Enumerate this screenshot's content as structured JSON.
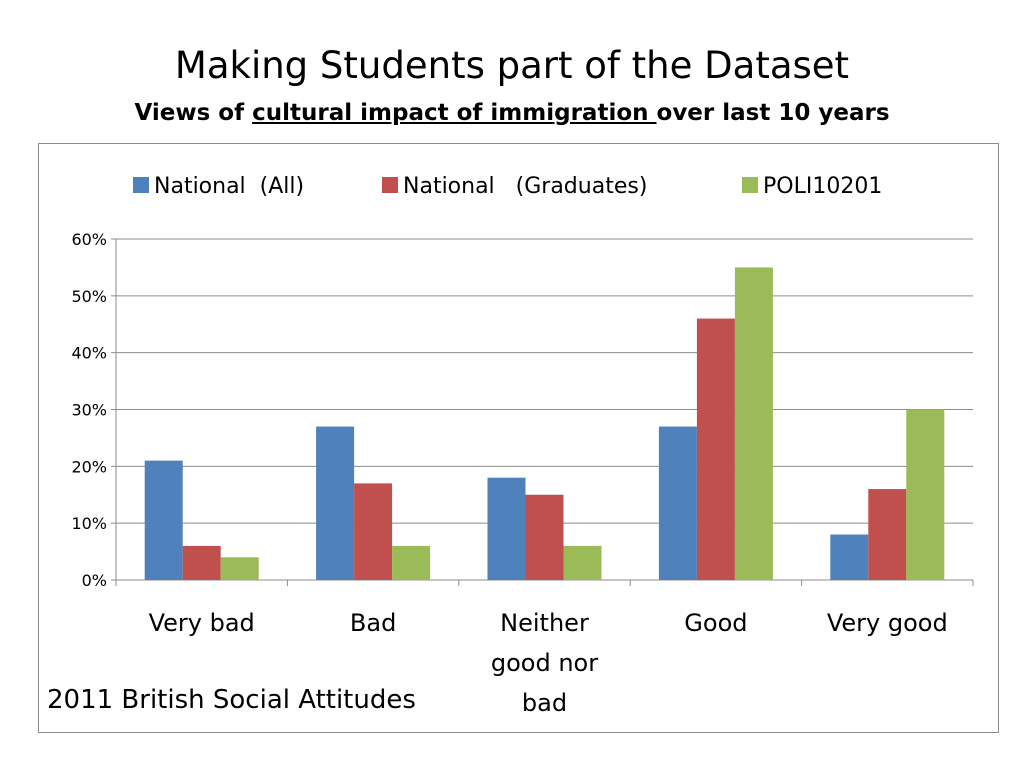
{
  "title": "Making Students part of the Dataset",
  "subtitle": {
    "prefix": "Views of ",
    "underlined": "cultural impact of immigration ",
    "suffix": "over last 10 years"
  },
  "source_note": "2011 British Social Attitudes",
  "chart_data": {
    "type": "bar",
    "categories": [
      "Very bad",
      "Bad",
      "Neither good nor bad",
      "Good",
      "Very good"
    ],
    "category_label_lines": [
      [
        "Very bad"
      ],
      [
        "Bad"
      ],
      [
        "Neither",
        "good nor",
        "bad"
      ],
      [
        "Good"
      ],
      [
        "Very good"
      ]
    ],
    "series": [
      {
        "name": "National  (All)",
        "color": "#4f81bd",
        "values": [
          21,
          27,
          18,
          27,
          8
        ]
      },
      {
        "name": "National   (Graduates)",
        "color": "#c0504d",
        "values": [
          6,
          17,
          15,
          46,
          16
        ]
      },
      {
        "name": "POLI10201",
        "color": "#9bbb59",
        "values": [
          4,
          6,
          6,
          55,
          30
        ]
      }
    ],
    "ylim": [
      0,
      60
    ],
    "yticks": [
      0,
      10,
      20,
      30,
      40,
      50,
      60
    ],
    "ytick_labels": [
      "0%",
      "10%",
      "20%",
      "30%",
      "40%",
      "50%",
      "60%"
    ],
    "grid": true,
    "legend_position": "top"
  }
}
